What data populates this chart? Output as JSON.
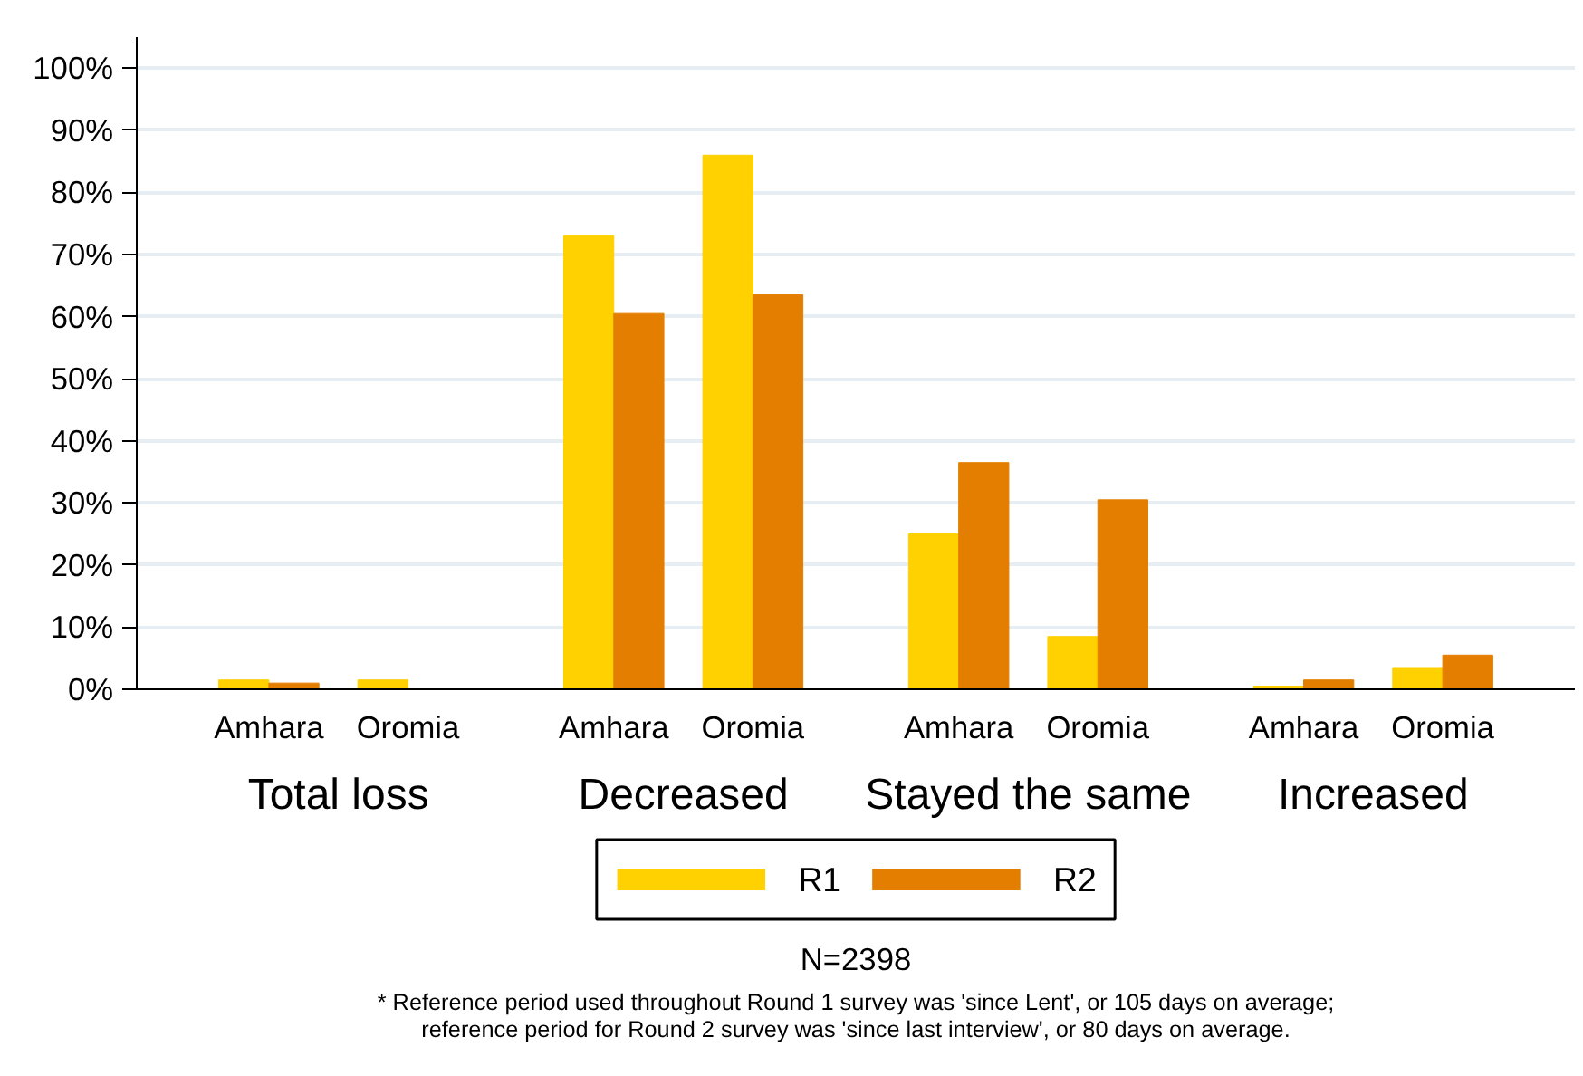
{
  "chart_data": {
    "type": "bar",
    "categories": [
      "Amhara",
      "Oromia",
      "Amhara",
      "Oromia",
      "Amhara",
      "Oromia",
      "Amhara",
      "Oromia"
    ],
    "series": [
      {
        "name": "R1",
        "color": "#ffd100",
        "values": [
          1.5,
          1.5,
          73,
          86,
          25,
          8.5,
          0.5,
          3.5
        ]
      },
      {
        "name": "R2",
        "color": "#e37e00",
        "values": [
          1,
          0,
          60.5,
          63.5,
          36.5,
          30.5,
          1.5,
          5.5
        ]
      }
    ],
    "ylim": [
      0,
      105
    ],
    "yticks": [
      {
        "value": 0,
        "label": "0%"
      },
      {
        "value": 10,
        "label": "10%"
      },
      {
        "value": 20,
        "label": "20%"
      },
      {
        "value": 30,
        "label": "30%"
      },
      {
        "value": 40,
        "label": "40%"
      },
      {
        "value": 50,
        "label": "50%"
      },
      {
        "value": 60,
        "label": "60%"
      },
      {
        "value": 70,
        "label": "70%"
      },
      {
        "value": 80,
        "label": "80%"
      },
      {
        "value": 90,
        "label": "90%"
      },
      {
        "value": 100,
        "label": "100%"
      }
    ],
    "grid": "y",
    "legend": "bottom",
    "annotations": [
      "Total loss",
      "Decreased",
      "Stayed the same",
      "Increased",
      "N=2398",
      "* Reference period used throughout Round 1 survey was 'since Lent', or 105 days on average;\nreference period for Round 2 survey was 'since last interview', or 80 days on average."
    ]
  }
}
